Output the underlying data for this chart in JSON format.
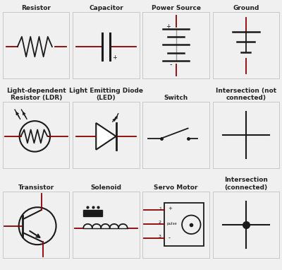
{
  "grid_color": "#c8c8c8",
  "line_color": "#1a1a1a",
  "wire_color": "#8B0000",
  "bg_color": "#f0f0f0",
  "title_fontsize": 6.5,
  "grid_rows": 3,
  "grid_cols": 4,
  "titles": [
    [
      "Resistor",
      "Capacitor",
      "Power Source",
      "Ground"
    ],
    [
      "Light-dependent\nResistor (LDR)",
      "Light Emitting Diode\n(LED)",
      "Switch",
      "Intersection (not\nconnected)"
    ],
    [
      "Transistor",
      "Solenoid",
      "Servo Motor",
      "Intersection\n(connected)"
    ]
  ]
}
